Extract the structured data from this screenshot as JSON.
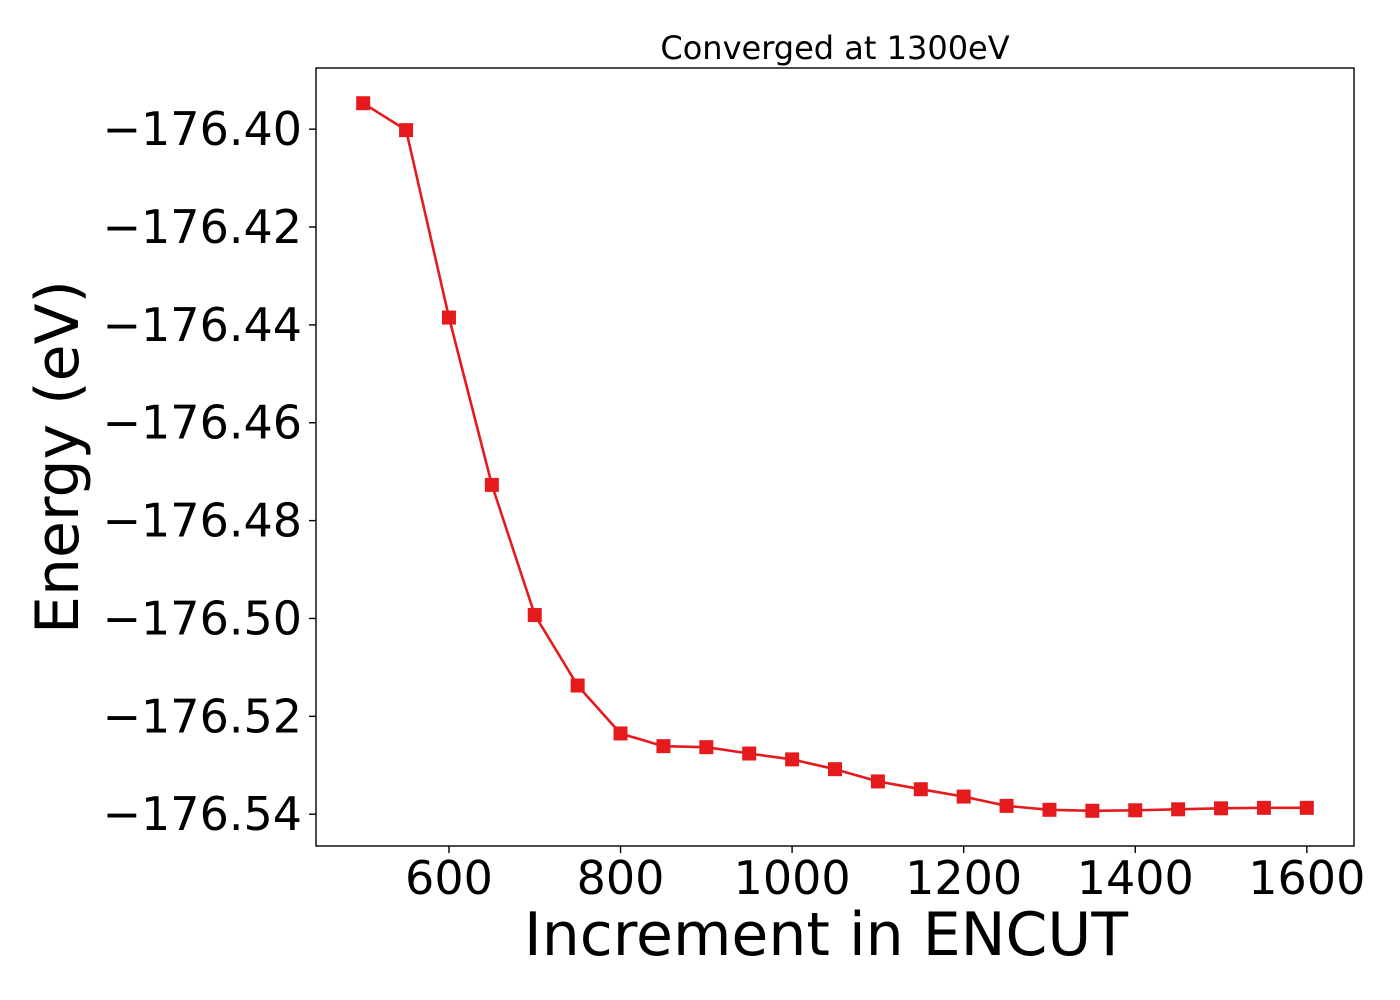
{
  "chart_data": {
    "type": "line",
    "title": "Converged at 1300eV",
    "xlabel": "Increment in ENCUT",
    "ylabel": "Energy (eV)",
    "xlim": [
      445,
      1655
    ],
    "ylim": [
      -176.5465,
      -176.3875
    ],
    "xticks": [
      600,
      800,
      1000,
      1200,
      1400,
      1600
    ],
    "xtick_labels": [
      "600",
      "800",
      "1000",
      "1200",
      "1400",
      "1600"
    ],
    "yticks": [
      -176.4,
      -176.42,
      -176.44,
      -176.46,
      -176.48,
      -176.5,
      -176.52,
      -176.54
    ],
    "ytick_labels": [
      "−176.40",
      "−176.42",
      "−176.44",
      "−176.46",
      "−176.48",
      "−176.50",
      "−176.52",
      "−176.54"
    ],
    "grid": false,
    "legend": "none",
    "series": [
      {
        "color": "#e41a1c",
        "marker": "square",
        "x": [
          500,
          550,
          600,
          650,
          700,
          750,
          800,
          850,
          900,
          950,
          1000,
          1050,
          1100,
          1150,
          1200,
          1250,
          1300,
          1350,
          1400,
          1450,
          1500,
          1550,
          1600
        ],
        "y": [
          -176.3947,
          -176.4002,
          -176.4385,
          -176.4727,
          -176.4993,
          -176.5137,
          -176.5235,
          -176.5261,
          -176.5263,
          -176.5276,
          -176.5288,
          -176.5308,
          -176.5333,
          -176.5349,
          -176.5364,
          -176.5383,
          -176.5391,
          -176.5393,
          -176.5392,
          -176.539,
          -176.5388,
          -176.5387,
          -176.5387
        ]
      }
    ]
  }
}
